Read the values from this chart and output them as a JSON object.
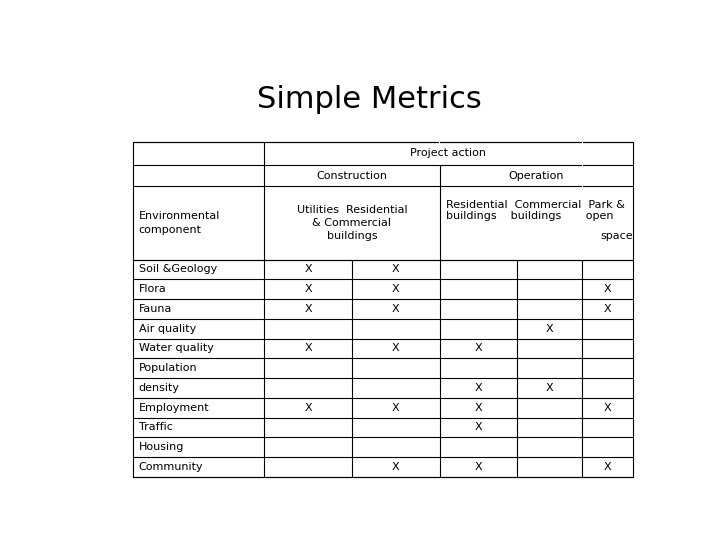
{
  "title": "Simple Metrics",
  "title_fontsize": 22,
  "table_fontsize": 8,
  "background": "#ffffff",
  "rows": [
    [
      "Soil &Geology",
      "X",
      "X",
      "",
      "",
      ""
    ],
    [
      "Flora",
      "X",
      "X",
      "",
      "",
      "X"
    ],
    [
      "Fauna",
      "X",
      "X",
      "",
      "",
      "X"
    ],
    [
      "Air quality",
      "",
      "",
      "",
      "X",
      ""
    ],
    [
      "Water quality",
      "X",
      "X",
      "X",
      "",
      ""
    ],
    [
      "Population",
      "",
      "",
      "",
      "",
      ""
    ],
    [
      "density",
      "",
      "",
      "X",
      "X",
      ""
    ],
    [
      "Employment",
      "X",
      "X",
      "X",
      "",
      "X"
    ],
    [
      "Traffic",
      "",
      "",
      "X",
      "",
      ""
    ],
    [
      "Housing",
      "",
      "",
      "",
      "",
      ""
    ],
    [
      "Community",
      "",
      "X",
      "X",
      "",
      "X"
    ]
  ]
}
